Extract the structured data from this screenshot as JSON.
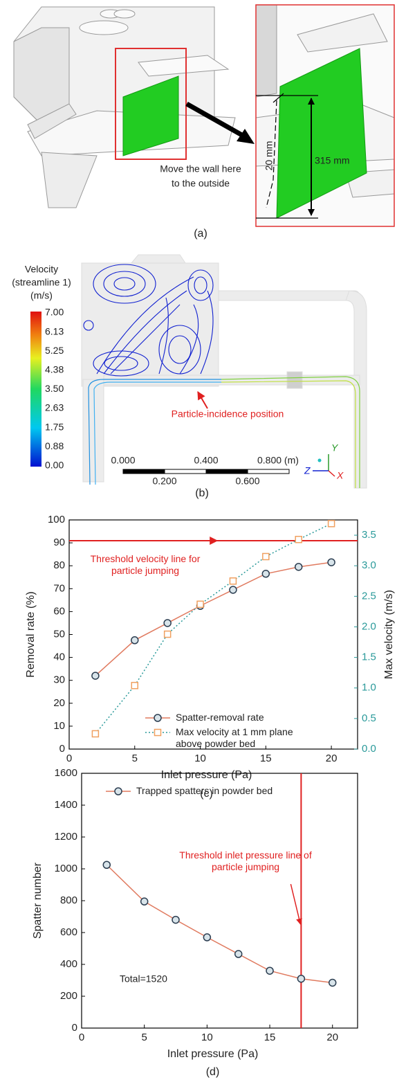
{
  "panels": {
    "a": {
      "label": "(a)",
      "annotation": [
        "Move the wall here",
        "to the outside"
      ],
      "dim_small": "20 mm",
      "dim_large": "315 mm"
    },
    "b": {
      "label": "(b)",
      "colorbar_title": [
        "Velocity",
        "(streamline 1)",
        "(m/s)"
      ],
      "colorbar_labels": [
        "7.00",
        "6.13",
        "5.25",
        "4.38",
        "3.50",
        "2.63",
        "1.75",
        "0.88",
        "0.00"
      ],
      "annotation": "Particle-incidence position",
      "scale_top": [
        "0.000",
        "0.400",
        "0.800 (m)"
      ],
      "scale_bottom": [
        "0.200",
        "0.600"
      ],
      "axes": [
        "Y",
        "Z",
        "X"
      ]
    }
  },
  "chart_data": [
    {
      "type": "line",
      "label": "(c)",
      "x_label": "Inlet pressure (Pa)",
      "y_label": "Removal rate (%)",
      "y2_label": "Max velocity (m/s)",
      "x": [
        2,
        5,
        7.5,
        10,
        12.5,
        15,
        17.5,
        20
      ],
      "series": [
        {
          "name": "Spatter-removal rate",
          "color": "#e07a5f",
          "marker": "circle",
          "marker_color": "#2b3d50",
          "line_style": "solid",
          "values": [
            32,
            47.5,
            55,
            62.5,
            69.5,
            76.5,
            79.5,
            81.5
          ]
        },
        {
          "name": "Max velocity at 1 mm plane above powder bed",
          "color": "#2a9a9a",
          "marker": "square",
          "marker_color": "#f0a060",
          "line_style": "dotted",
          "axis": "y2",
          "values": [
            0.25,
            1.04,
            1.88,
            2.37,
            2.75,
            3.15,
            3.43,
            3.69
          ]
        }
      ],
      "xlim": [
        0,
        22
      ],
      "xticks": [
        0,
        5,
        10,
        15,
        20
      ],
      "ylim": [
        0,
        100
      ],
      "yticks": [
        0,
        10,
        20,
        30,
        40,
        50,
        60,
        70,
        80,
        90,
        100
      ],
      "y2lim": [
        0,
        3.75
      ],
      "y2color": "#2a9a9a",
      "y2ticks": [
        {
          "value": 0,
          "label": "0.0"
        },
        {
          "value": 0.5,
          "label": "0.5"
        },
        {
          "value": 1,
          "label": "1.0"
        },
        {
          "value": 1.5,
          "label": "1.5"
        },
        {
          "value": 2,
          "label": "2.0"
        },
        {
          "value": 2.5,
          "label": "2.5"
        },
        {
          "value": 3,
          "label": "3.0"
        },
        {
          "value": 3.5,
          "label": "3.5"
        }
      ],
      "threshold": {
        "axis": "y2",
        "value": 3.41,
        "color": "#e02020",
        "label": "Threshold velocity line for particle jumping"
      },
      "legend": "lower right"
    },
    {
      "type": "line",
      "label": "(d)",
      "x_label": "Inlet pressure (Pa)",
      "y_label": "Spatter number",
      "x": [
        2,
        5,
        7.5,
        10,
        12.5,
        15,
        17.5,
        20
      ],
      "series": [
        {
          "name": "Trapped spatters in powder bed",
          "color": "#e07a5f",
          "marker": "circle",
          "marker_color": "#2b3d50",
          "line_style": "solid",
          "values": [
            1025,
            795,
            680,
            570,
            465,
            360,
            310,
            285
          ]
        }
      ],
      "xlim": [
        0,
        22
      ],
      "xticks": [
        0,
        5,
        10,
        15,
        20
      ],
      "ylim": [
        0,
        1600
      ],
      "yticks": [
        0,
        200,
        400,
        600,
        800,
        1000,
        1200,
        1400,
        1600
      ],
      "threshold": {
        "axis": "x",
        "value": 17.5,
        "color": "#e02020",
        "label": "Threshold inlet pressure line of particle jumping"
      },
      "annotation": "Total=1520",
      "legend": "upper left"
    }
  ]
}
